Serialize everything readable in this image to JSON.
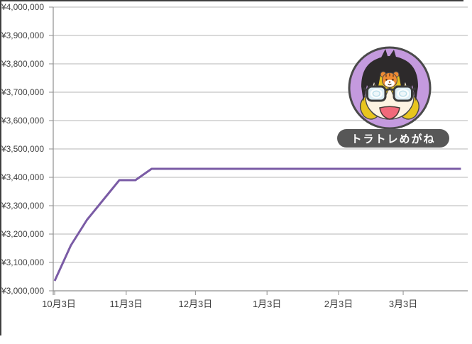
{
  "chart_data": {
    "type": "line",
    "title": "",
    "xlabel": "",
    "ylabel": "",
    "grid": "horizontal",
    "legend": "none",
    "y_axis": {
      "min": 3000000,
      "max": 4000000,
      "step": 100000,
      "tick_labels": [
        "¥4,000,000",
        "¥3,900,000",
        "¥3,800,000",
        "¥3,700,000",
        "¥3,600,000",
        "¥3,500,000",
        "¥3,400,000",
        "¥3,300,000",
        "¥3,200,000",
        "¥3,100,000",
        "¥3,000,000"
      ]
    },
    "x_axis": {
      "tick_labels": [
        "10月3日",
        "11月3日",
        "12月3日",
        "1月3日",
        "2月3日",
        "3月3日"
      ],
      "tick_days": [
        0,
        31,
        61,
        92,
        123,
        151
      ]
    },
    "series": [
      {
        "name": "account-value",
        "color": "#7a5ba5",
        "points": [
          {
            "day": 0,
            "value": 3035000
          },
          {
            "day": 7,
            "value": 3160000
          },
          {
            "day": 14,
            "value": 3250000
          },
          {
            "day": 21,
            "value": 3320000
          },
          {
            "day": 28,
            "value": 3390000
          },
          {
            "day": 35,
            "value": 3390000
          },
          {
            "day": 42,
            "value": 3430000
          },
          {
            "day": 176,
            "value": 3430000
          }
        ]
      }
    ],
    "colors": {
      "gridline": "#b5b5b5",
      "axis": "#8f8f8f",
      "label_text": "#3f3f3f"
    }
  },
  "overlay": {
    "avatar": {
      "label": "トラトレめがね",
      "badge_bg": "#575757",
      "badge_text": "#ffffff",
      "ring_fill": "#c49ade",
      "ring_border": "#4a4a4a"
    }
  }
}
